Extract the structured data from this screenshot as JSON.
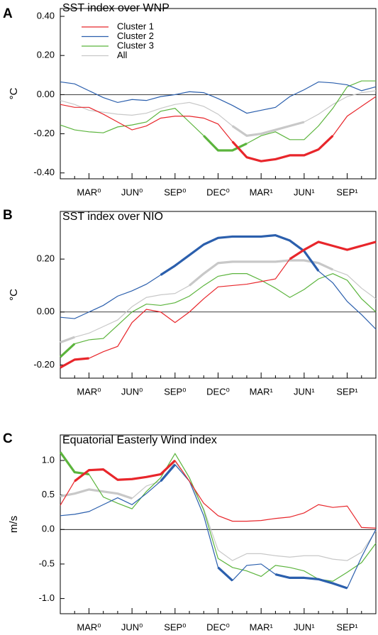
{
  "chart_data": [
    {
      "type": "line",
      "letter": "A",
      "title": "SST index over WNP",
      "ylabel": "°C",
      "legend": "upper left",
      "zero_line": true,
      "categories": [
        null,
        null,
        "MAR⁰",
        null,
        null,
        "JUN⁰",
        null,
        null,
        "SEP⁰",
        null,
        null,
        "DEC⁰",
        null,
        null,
        "MAR¹",
        null,
        null,
        "JUN¹",
        null,
        null,
        "SEP¹",
        null,
        null
      ],
      "ylim": [
        -0.43,
        0.44
      ],
      "yticks": [
        {
          "value": -0.4,
          "label": "-0.40"
        },
        {
          "value": -0.2,
          "label": "-0.20"
        },
        {
          "value": 0,
          "label": "0.00"
        },
        {
          "value": 0.2,
          "label": "0.20"
        },
        {
          "value": 0.4,
          "label": "0.40"
        }
      ],
      "series": [
        {
          "name": "Cluster 1",
          "color": "#e8262b",
          "thick": [
            [
              12,
              19
            ]
          ],
          "values": [
            -0.05,
            -0.065,
            -0.065,
            -0.1,
            -0.14,
            -0.18,
            -0.16,
            -0.12,
            -0.11,
            -0.11,
            -0.12,
            -0.15,
            -0.24,
            -0.32,
            -0.34,
            -0.33,
            -0.31,
            -0.31,
            -0.28,
            -0.21,
            -0.11,
            -0.06,
            -0.01
          ]
        },
        {
          "name": "Cluster 2",
          "color": "#2b5fad",
          "thick": [],
          "values": [
            0.065,
            0.055,
            0.02,
            -0.015,
            -0.04,
            -0.025,
            -0.03,
            -0.01,
            0,
            0.015,
            0.01,
            -0.02,
            -0.055,
            -0.095,
            -0.08,
            -0.065,
            -0.01,
            0.025,
            0.065,
            0.06,
            0.05,
            0.02,
            0.04
          ]
        },
        {
          "name": "Cluster 3",
          "color": "#5bb43c",
          "thick": [
            [
              10,
              13
            ]
          ],
          "values": [
            -0.155,
            -0.18,
            -0.19,
            -0.195,
            -0.165,
            -0.155,
            -0.14,
            -0.085,
            -0.07,
            -0.14,
            -0.21,
            -0.285,
            -0.285,
            -0.25,
            -0.21,
            -0.19,
            -0.23,
            -0.23,
            -0.16,
            -0.07,
            0.04,
            0.07,
            0.07
          ]
        },
        {
          "name": "All",
          "color": "#c8c8c8",
          "thick": [
            [
              12,
              17
            ]
          ],
          "values": [
            -0.03,
            -0.05,
            -0.08,
            -0.09,
            -0.1,
            -0.105,
            -0.095,
            -0.07,
            -0.05,
            -0.04,
            -0.06,
            -0.1,
            -0.16,
            -0.21,
            -0.2,
            -0.18,
            -0.16,
            -0.14,
            -0.1,
            -0.05,
            -0.01,
            0.01,
            0.02
          ]
        }
      ]
    },
    {
      "type": "line",
      "letter": "B",
      "title": "SST index over NIO",
      "ylabel": "°C",
      "zero_line": true,
      "categories": [
        null,
        null,
        "MAR⁰",
        null,
        null,
        "JUN⁰",
        null,
        null,
        "SEP⁰",
        null,
        null,
        "DEC⁰",
        null,
        null,
        "MAR¹",
        null,
        null,
        "JUN¹",
        null,
        null,
        "SEP¹",
        null,
        null
      ],
      "ylim": [
        -0.25,
        0.38
      ],
      "yticks": [
        {
          "value": -0.2,
          "label": "-0.20"
        },
        {
          "value": 0,
          "label": "0.00"
        },
        {
          "value": 0.2,
          "label": "0.20"
        }
      ],
      "series": [
        {
          "name": "Cluster 1",
          "color": "#e8262b",
          "thick": [
            [
              0,
              2
            ],
            [
              16,
              22
            ]
          ],
          "values": [
            -0.21,
            -0.18,
            -0.175,
            -0.15,
            -0.13,
            -0.04,
            0.01,
            0,
            -0.04,
            0,
            0.05,
            0.095,
            0.1,
            0.105,
            0.115,
            0.125,
            0.2,
            0.235,
            0.265,
            0.25,
            0.235,
            0.25,
            0.265
          ]
        },
        {
          "name": "Cluster 2",
          "color": "#2b5fad",
          "thick": [
            [
              7,
              18
            ]
          ],
          "values": [
            -0.02,
            -0.025,
            0,
            0.025,
            0.06,
            0.08,
            0.105,
            0.14,
            0.175,
            0.215,
            0.255,
            0.28,
            0.285,
            0.285,
            0.285,
            0.29,
            0.27,
            0.23,
            0.155,
            0.11,
            0.04,
            -0.01,
            -0.065
          ]
        },
        {
          "name": "Cluster 3",
          "color": "#5bb43c",
          "thick": [
            [
              0,
              1
            ]
          ],
          "values": [
            -0.17,
            -0.12,
            -0.105,
            -0.1,
            -0.05,
            0,
            0.03,
            0.025,
            0.035,
            0.06,
            0.1,
            0.135,
            0.145,
            0.145,
            0.12,
            0.09,
            0.055,
            0.085,
            0.125,
            0.145,
            0.12,
            0.05,
            0
          ]
        },
        {
          "name": "All",
          "color": "#c8c8c8",
          "thick": [
            [
              0,
              1
            ],
            [
              9,
              19
            ]
          ],
          "values": [
            -0.115,
            -0.095,
            -0.08,
            -0.055,
            -0.03,
            0.02,
            0.055,
            0.065,
            0.07,
            0.1,
            0.145,
            0.185,
            0.19,
            0.19,
            0.19,
            0.19,
            0.195,
            0.195,
            0.185,
            0.16,
            0.14,
            0.09,
            0.05
          ]
        }
      ]
    },
    {
      "type": "line",
      "letter": "C",
      "title": "Equatorial Easterly Wind index",
      "ylabel": "m/s",
      "zero_line": true,
      "categories": [
        null,
        null,
        "MAR⁰",
        null,
        null,
        "JUN⁰",
        null,
        null,
        "SEP⁰",
        null,
        null,
        "DEC⁰",
        null,
        null,
        "MAR¹",
        null,
        null,
        "JUN¹",
        null,
        null,
        "SEP¹",
        null,
        null
      ],
      "ylim": [
        -1.22,
        1.37
      ],
      "yticks": [
        {
          "value": -1,
          "label": "-1.0"
        },
        {
          "value": -0.5,
          "label": "-0.5"
        },
        {
          "value": 0,
          "label": "0.0"
        },
        {
          "value": 0.5,
          "label": "0.5"
        },
        {
          "value": 1,
          "label": "1.0"
        }
      ],
      "series": [
        {
          "name": "Cluster 1",
          "color": "#e8262b",
          "thick": [
            [
              1,
              8
            ]
          ],
          "values": [
            0.35,
            0.7,
            0.86,
            0.87,
            0.72,
            0.73,
            0.76,
            0.8,
            1,
            0.7,
            0.38,
            0.2,
            0.12,
            0.12,
            0.13,
            0.16,
            0.18,
            0.24,
            0.36,
            0.32,
            0.34,
            0.03,
            0.02
          ]
        },
        {
          "name": "Cluster 2",
          "color": "#2b5fad",
          "thick": [
            [
              7,
              8
            ],
            [
              11,
              12
            ],
            [
              15,
              20
            ]
          ],
          "values": [
            0.2,
            0.22,
            0.26,
            0.36,
            0.46,
            0.36,
            0.52,
            0.7,
            0.94,
            0.7,
            0.2,
            -0.55,
            -0.74,
            -0.52,
            -0.5,
            -0.65,
            -0.7,
            -0.7,
            -0.72,
            -0.78,
            -0.85,
            -0.4,
            0
          ]
        },
        {
          "name": "Cluster 3",
          "color": "#5bb43c",
          "thick": [
            [
              0,
              2
            ]
          ],
          "values": [
            1.12,
            0.83,
            0.8,
            0.47,
            0.38,
            0.3,
            0.55,
            0.75,
            1.1,
            0.75,
            0.28,
            -0.42,
            -0.55,
            -0.6,
            -0.68,
            -0.52,
            -0.55,
            -0.6,
            -0.72,
            -0.75,
            -0.62,
            -0.48,
            -0.2
          ]
        },
        {
          "name": "All",
          "color": "#c8c8c8",
          "thick": [
            [
              0,
              5
            ]
          ],
          "values": [
            0.48,
            0.52,
            0.58,
            0.55,
            0.52,
            0.45,
            0.63,
            0.7,
            0.98,
            0.7,
            0.3,
            -0.3,
            -0.45,
            -0.35,
            -0.35,
            -0.38,
            -0.4,
            -0.38,
            -0.38,
            -0.43,
            -0.45,
            -0.33,
            -0.02
          ]
        }
      ]
    }
  ]
}
